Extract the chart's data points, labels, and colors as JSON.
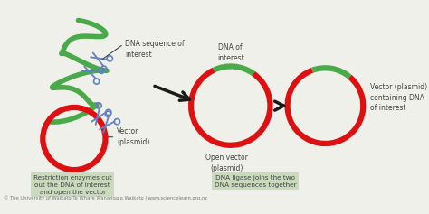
{
  "background_color": "#f0f0eb",
  "copyright_text": "© The University of Waikato Te Whare Wananga o Waikato | www.sciencelearn.org.nz",
  "dna_green": "#4aaa4a",
  "dna_red": "#dd1111",
  "arrow_color": "#1a1a1a",
  "scissors_color": "#6080c0",
  "box_color": "#c5d8b8",
  "text_color": "#444444",
  "annotations": {
    "dna_seq": "DNA sequence of\ninterest",
    "vector": "Vector\n(plasmid)",
    "dna_of_interest": "DNA of\ninterest",
    "open_vector": "Open vector\n(plasmid)",
    "vector_containing": "Vector (plasmid)\ncontaining DNA\nof interest",
    "restriction_box": "Restriction enzymes cut\nout the DNA of interest\nand open the vector",
    "ligase_box": "DNA ligase joins the two\nDNA sequences together"
  }
}
